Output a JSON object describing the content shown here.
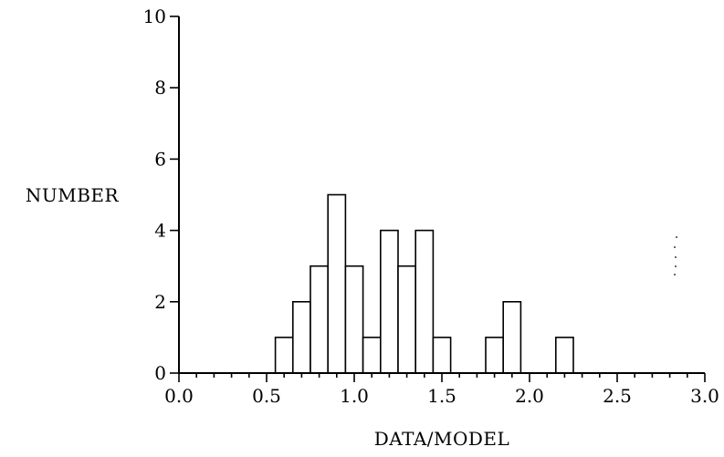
{
  "chart_data": {
    "type": "bar",
    "xlabel": "DATA/MODEL",
    "ylabel": "NUMBER",
    "xlim": [
      0.0,
      3.0
    ],
    "ylim": [
      0,
      10
    ],
    "bin_width": 0.1,
    "x_ticks": [
      "0.0",
      "0.5",
      "1.0",
      "1.5",
      "2.0",
      "2.5",
      "3.0"
    ],
    "y_ticks": [
      "0",
      "2",
      "4",
      "6",
      "8",
      "10"
    ],
    "bins": [
      {
        "x0": 0.55,
        "x1": 0.65,
        "value": 1
      },
      {
        "x0": 0.65,
        "x1": 0.75,
        "value": 2
      },
      {
        "x0": 0.75,
        "x1": 0.85,
        "value": 3
      },
      {
        "x0": 0.85,
        "x1": 0.95,
        "value": 5
      },
      {
        "x0": 0.95,
        "x1": 1.05,
        "value": 3
      },
      {
        "x0": 1.05,
        "x1": 1.15,
        "value": 1
      },
      {
        "x0": 1.15,
        "x1": 1.25,
        "value": 4
      },
      {
        "x0": 1.25,
        "x1": 1.35,
        "value": 3
      },
      {
        "x0": 1.35,
        "x1": 1.45,
        "value": 4
      },
      {
        "x0": 1.45,
        "x1": 1.55,
        "value": 1
      },
      {
        "x0": 1.75,
        "x1": 1.85,
        "value": 1
      },
      {
        "x0": 1.85,
        "x1": 1.95,
        "value": 2
      },
      {
        "x0": 2.15,
        "x1": 2.25,
        "value": 1
      }
    ],
    "grid": false,
    "legend": "none"
  }
}
